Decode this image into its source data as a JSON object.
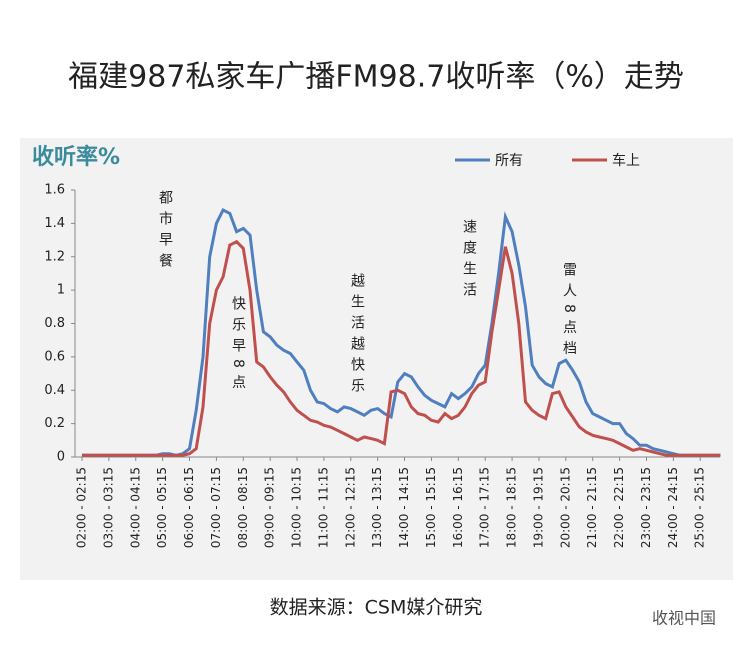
{
  "chart_data": {
    "type": "line",
    "title": "福建987私家车广播FM98.7收听率（%）走势",
    "y_label": "收听率%",
    "source": "数据来源：CSM媒介研究",
    "watermark": "收视中国",
    "categories": [
      "02:00 - 02:15",
      null,
      null,
      null,
      "03:00 - 03:15",
      null,
      null,
      null,
      "04:00 - 04:15",
      null,
      null,
      null,
      "05:00 - 05:15",
      null,
      null,
      null,
      "06:00 - 06:15",
      null,
      null,
      null,
      "07:00 - 07:15",
      null,
      null,
      null,
      "08:00 - 08:15",
      null,
      null,
      null,
      "09:00 - 09:15",
      null,
      null,
      null,
      "10:00 - 10:15",
      null,
      null,
      null,
      "11:00 - 11:15",
      null,
      null,
      null,
      "12:00 - 12:15",
      null,
      null,
      null,
      "13:00 - 13:15",
      null,
      null,
      null,
      "14:00 - 14:15",
      null,
      null,
      null,
      "15:00 - 15:15",
      null,
      null,
      null,
      "16:00 - 16:15",
      null,
      null,
      null,
      "17:00 - 17:15",
      null,
      null,
      null,
      "18:00 - 18:15",
      null,
      null,
      null,
      "19:00 - 19:15",
      null,
      null,
      null,
      "20:00 - 20:15",
      null,
      null,
      null,
      "21:00 - 21:15",
      null,
      null,
      null,
      "22:00 - 22:15",
      null,
      null,
      null,
      "23:00 - 23:15",
      null,
      null,
      null,
      "24:00 - 24:15",
      null,
      null,
      null,
      "25:00 - 25:15",
      null,
      null,
      null
    ],
    "series": [
      {
        "name": "所有",
        "color": "#4f7fbf",
        "values": [
          0.01,
          0.01,
          0.01,
          0.01,
          0.01,
          0.01,
          0.01,
          0.01,
          0.01,
          0.01,
          0.01,
          0.01,
          0.02,
          0.02,
          0.01,
          0.02,
          0.05,
          0.28,
          0.6,
          1.2,
          1.4,
          1.48,
          1.46,
          1.35,
          1.37,
          1.33,
          1.0,
          0.75,
          0.72,
          0.67,
          0.64,
          0.62,
          0.57,
          0.52,
          0.4,
          0.33,
          0.32,
          0.29,
          0.27,
          0.3,
          0.29,
          0.27,
          0.25,
          0.28,
          0.29,
          0.26,
          0.24,
          0.45,
          0.5,
          0.48,
          0.42,
          0.37,
          0.34,
          0.32,
          0.3,
          0.38,
          0.35,
          0.38,
          0.42,
          0.5,
          0.55,
          0.8,
          1.1,
          1.44,
          1.35,
          1.15,
          0.9,
          0.55,
          0.48,
          0.44,
          0.42,
          0.56,
          0.58,
          0.52,
          0.45,
          0.33,
          0.26,
          0.24,
          0.22,
          0.2,
          0.2,
          0.14,
          0.11,
          0.07,
          0.07,
          0.05,
          0.04,
          0.03,
          0.02,
          0.01,
          0.01,
          0.01,
          0.01,
          0.01,
          0.01,
          0.01
        ]
      },
      {
        "name": "车上",
        "color": "#c0504d",
        "values": [
          0.01,
          0.01,
          0.01,
          0.01,
          0.01,
          0.01,
          0.01,
          0.01,
          0.01,
          0.01,
          0.01,
          0.01,
          0.01,
          0.01,
          0.01,
          0.01,
          0.02,
          0.05,
          0.3,
          0.8,
          1.0,
          1.08,
          1.27,
          1.29,
          1.25,
          1.0,
          0.57,
          0.54,
          0.48,
          0.43,
          0.39,
          0.33,
          0.28,
          0.25,
          0.22,
          0.21,
          0.19,
          0.18,
          0.16,
          0.14,
          0.12,
          0.1,
          0.12,
          0.11,
          0.1,
          0.08,
          0.39,
          0.4,
          0.38,
          0.3,
          0.26,
          0.25,
          0.22,
          0.21,
          0.26,
          0.23,
          0.25,
          0.3,
          0.38,
          0.43,
          0.45,
          0.75,
          1.0,
          1.26,
          1.1,
          0.8,
          0.33,
          0.28,
          0.25,
          0.23,
          0.38,
          0.39,
          0.3,
          0.24,
          0.18,
          0.15,
          0.13,
          0.12,
          0.11,
          0.1,
          0.08,
          0.06,
          0.04,
          0.05,
          0.04,
          0.03,
          0.02,
          0.01,
          0.01,
          0.01,
          0.01,
          0.01,
          0.01,
          0.01,
          0.01,
          0.01
        ]
      }
    ],
    "annotations": [
      "都市早餐",
      "快乐早8点",
      "越生活越快乐",
      "速度生活",
      "雷人8点档"
    ],
    "ylim": [
      0,
      1.6
    ],
    "yticks": [
      0,
      0.2,
      0.4,
      0.6,
      0.8,
      {
        "value": 1.0,
        "label": "1"
      },
      1.2,
      1.4,
      1.6
    ],
    "legend": "top"
  }
}
